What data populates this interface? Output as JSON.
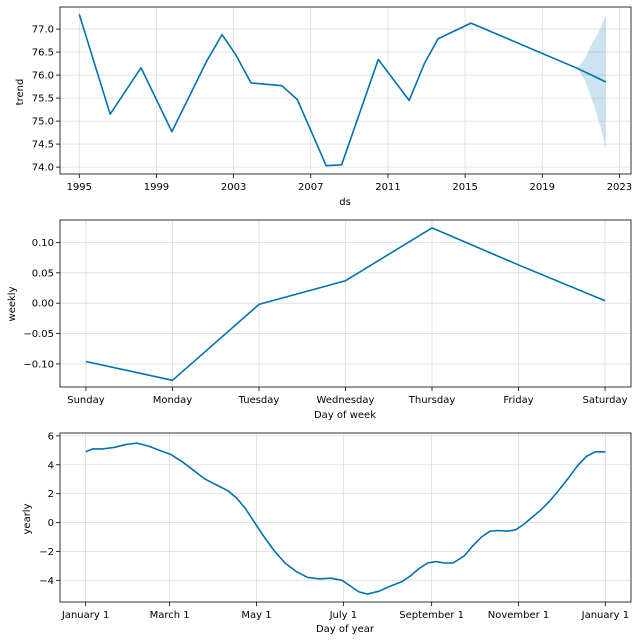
{
  "chart_data": [
    {
      "type": "line",
      "panel": "trend",
      "xlabel": "ds",
      "ylabel": "trend",
      "xlim": [
        1994.0,
        2023.6
      ],
      "ylim": [
        73.85,
        77.48
      ],
      "xticks": [
        1995,
        1999,
        2003,
        2007,
        2011,
        2015,
        2019,
        2023
      ],
      "xtick_labels": [
        "1995",
        "1999",
        "2003",
        "2007",
        "2011",
        "2015",
        "2019",
        "2023"
      ],
      "yticks": [
        74.0,
        74.5,
        75.0,
        75.5,
        76.0,
        76.5,
        77.0
      ],
      "ytick_labels": [
        "74.0",
        "74.5",
        "75.0",
        "75.5",
        "76.0",
        "76.5",
        "77.0"
      ],
      "series": [
        {
          "name": "trend",
          "color": "#0072B2",
          "x": [
            1995.0,
            1996.6,
            1998.2,
            1999.8,
            2001.6,
            2002.4,
            2003.1,
            2003.9,
            2005.5,
            2006.3,
            2007.8,
            2008.6,
            2010.5,
            2012.1,
            2012.9,
            2013.6,
            2015.3,
            2020.8,
            2022.3
          ],
          "y": [
            77.32,
            75.15,
            76.16,
            74.77,
            76.3,
            76.88,
            76.45,
            75.83,
            75.77,
            75.47,
            74.03,
            74.05,
            76.34,
            75.45,
            76.26,
            76.79,
            77.13,
            76.15,
            75.85
          ]
        }
      ],
      "uncertainty": {
        "color": "#0072B2",
        "x": [
          2020.8,
          2021.2,
          2021.6,
          2022.0,
          2022.3
        ],
        "upper": [
          76.15,
          76.35,
          76.7,
          77.0,
          77.32
        ],
        "lower": [
          76.15,
          75.9,
          75.45,
          74.9,
          74.4
        ]
      }
    },
    {
      "type": "line",
      "panel": "weekly",
      "xlabel": "Day of week",
      "ylabel": "weekly",
      "categories": [
        "Sunday",
        "Monday",
        "Tuesday",
        "Wednesday",
        "Thursday",
        "Friday",
        "Saturday"
      ],
      "xlim": [
        -0.3,
        6.3
      ],
      "ylim": [
        -0.138,
        0.137
      ],
      "yticks": [
        -0.1,
        -0.05,
        0.0,
        0.05,
        0.1
      ],
      "ytick_labels": [
        "−0.10",
        "−0.05",
        "0.00",
        "0.05",
        "0.10"
      ],
      "series": [
        {
          "name": "weekly",
          "color": "#0072B2",
          "values": [
            -0.096,
            -0.127,
            -0.002,
            0.037,
            0.124,
            0.063,
            0.004
          ]
        }
      ]
    },
    {
      "type": "line",
      "panel": "yearly",
      "xlabel": "Day of year",
      "ylabel": "yearly",
      "xlim": [
        -18,
        383
      ],
      "ylim": [
        -5.5,
        6.2
      ],
      "xticks": [
        0,
        59,
        120,
        181,
        243,
        304,
        365
      ],
      "xtick_labels": [
        "January 1",
        "March 1",
        "May 1",
        "July 1",
        "September 1",
        "November 1",
        "January 1"
      ],
      "yticks": [
        -4,
        -2,
        0,
        2,
        4,
        6
      ],
      "ytick_labels": [
        "−4",
        "−2",
        "0",
        "2",
        "4",
        "6"
      ],
      "series": [
        {
          "name": "yearly",
          "color": "#0072B2",
          "x": [
            0,
            5,
            12,
            20,
            28,
            36,
            44,
            52,
            60,
            68,
            76,
            84,
            92,
            100,
            106,
            112,
            118,
            124,
            132,
            140,
            148,
            156,
            164,
            172,
            180,
            186,
            192,
            198,
            206,
            214,
            222,
            228,
            234,
            240,
            246,
            252,
            258,
            266,
            272,
            278,
            284,
            290,
            296,
            302,
            308,
            314,
            320,
            326,
            332,
            340,
            346,
            352,
            358,
            365
          ],
          "y": [
            4.9,
            5.1,
            5.1,
            5.2,
            5.4,
            5.5,
            5.3,
            5.0,
            4.7,
            4.2,
            3.6,
            3.0,
            2.6,
            2.2,
            1.7,
            1.0,
            0.1,
            -0.8,
            -1.9,
            -2.8,
            -3.4,
            -3.8,
            -3.9,
            -3.85,
            -4.0,
            -4.4,
            -4.8,
            -4.95,
            -4.75,
            -4.4,
            -4.1,
            -3.7,
            -3.2,
            -2.8,
            -2.7,
            -2.8,
            -2.8,
            -2.3,
            -1.6,
            -1.0,
            -0.6,
            -0.55,
            -0.6,
            -0.5,
            -0.1,
            0.4,
            0.9,
            1.5,
            2.2,
            3.2,
            4.0,
            4.6,
            4.9,
            4.9
          ]
        }
      ]
    }
  ]
}
